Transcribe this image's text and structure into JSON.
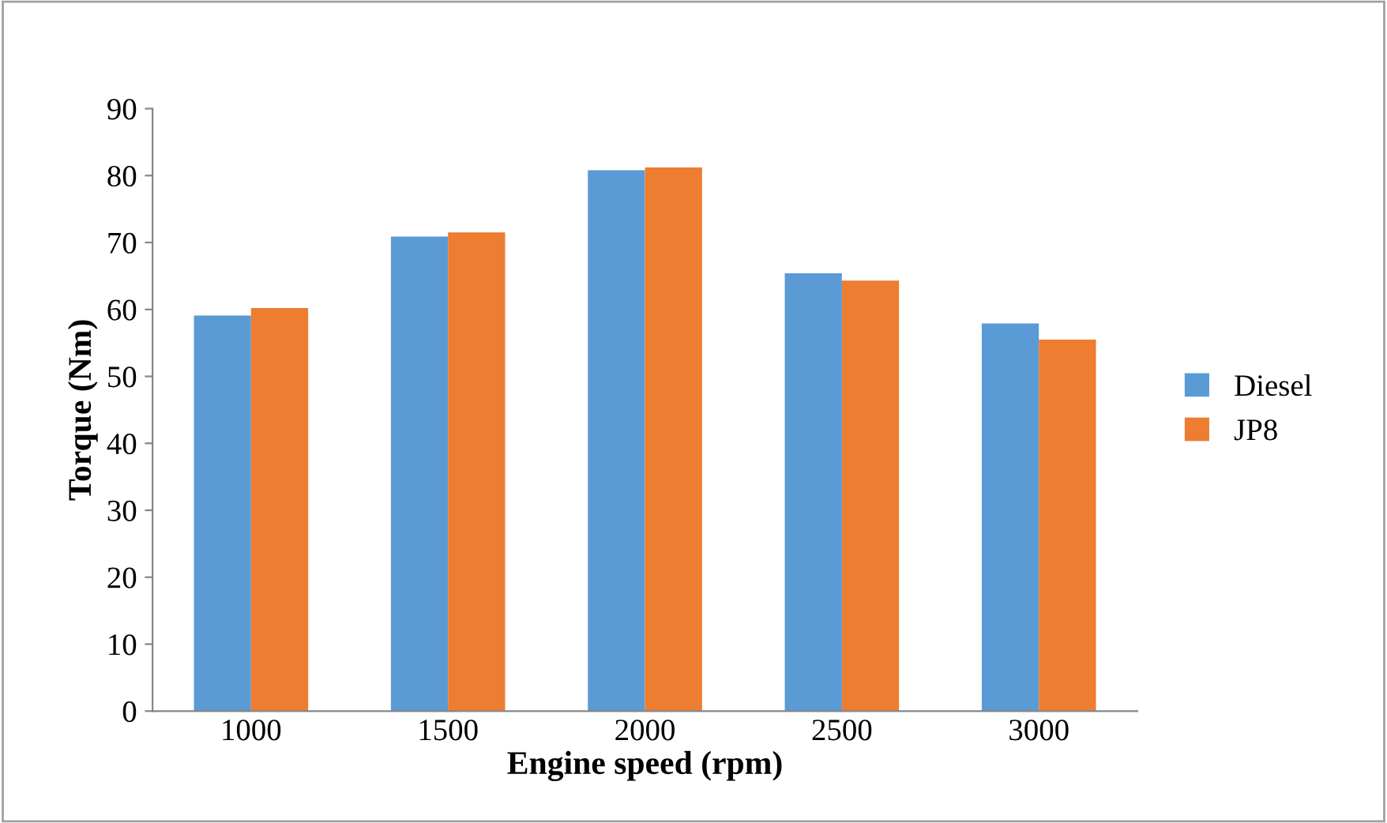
{
  "chart_data": {
    "type": "bar",
    "xlabel": "Engine speed (rpm)",
    "ylabel": "Torque (Nm)",
    "categories": [
      "1000",
      "1500",
      "2000",
      "2500",
      "3000"
    ],
    "series": [
      {
        "name": "Diesel",
        "color": "#5b9bd5",
        "values": [
          59.1,
          70.9,
          80.8,
          65.4,
          57.9
        ]
      },
      {
        "name": "JP8",
        "color": "#ed7d31",
        "values": [
          60.2,
          71.5,
          81.2,
          64.3,
          55.5
        ]
      }
    ],
    "ylim": [
      0,
      90
    ],
    "yticks": [
      0,
      10,
      20,
      30,
      40,
      50,
      60,
      70,
      80,
      90
    ],
    "grid": false,
    "legend": "right"
  }
}
